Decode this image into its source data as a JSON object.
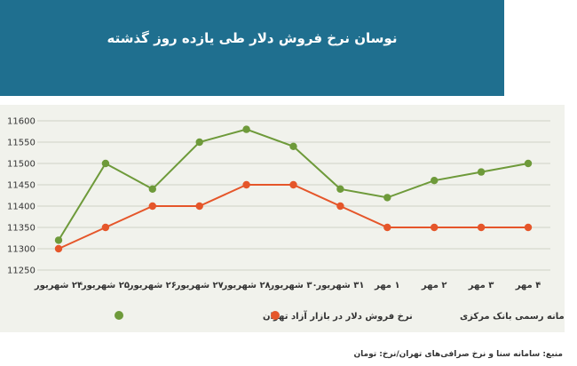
{
  "title": "نوسان نرخ فروش دلار طی یازده روز گذشته",
  "source": "منبع: سامانه سنا و نرخ صرافی‌های تهران/نرخ: تومان",
  "colors": {
    "banner": "#1f6f8f",
    "panel": "#f1f2ec",
    "green": "#6e9a3a",
    "orange": "#e5562a",
    "grid": "#cfd3c6"
  },
  "chart_data": {
    "type": "line",
    "categories": [
      "۲۴ شهریور",
      "۲۵ شهریور",
      "۲۶ شهریور",
      "۲۷ شهریور",
      "۲۸ شهریور",
      "۳۰ شهریور",
      "۳۱ شهریور",
      "۱ مهر",
      "۲ مهر",
      "۳ مهر",
      "۴ مهر"
    ],
    "yticks": [
      11250,
      11300,
      11350,
      11400,
      11450,
      11500,
      11550,
      11600
    ],
    "ylim": [
      11250,
      11600
    ],
    "grid": true,
    "legend_position": "bottom",
    "series": [
      {
        "name": "نرخ فروش دلار در بازار آزاد تهران",
        "color": "#6e9a3a",
        "values": [
          11320,
          11500,
          11440,
          11550,
          11580,
          11540,
          11440,
          11420,
          11460,
          11480,
          11500
        ]
      },
      {
        "name": "نرخ عرضه دلار در سامانه رسمی بانک مرکزی",
        "color": "#e5562a",
        "values": [
          11300,
          11350,
          11400,
          11400,
          11450,
          11450,
          11400,
          11350,
          11350,
          11350,
          11350
        ]
      }
    ]
  }
}
